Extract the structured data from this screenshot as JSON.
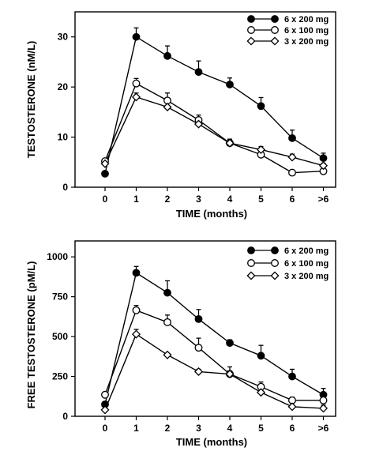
{
  "chart_data": [
    {
      "type": "line",
      "categories": [
        "0",
        "1",
        "2",
        "3",
        "4",
        "5",
        "6",
        ">6"
      ],
      "xlabel": "TIME (months)",
      "ylabel": "TESTOSTERONE (nM/L)",
      "ylim": [
        0,
        35
      ],
      "yticks": [
        0,
        10,
        20,
        30
      ],
      "legend_position": "top-right",
      "series": [
        {
          "name": "6 x 200 mg",
          "marker": "filled-circle",
          "values": [
            2.7,
            30,
            26.2,
            23,
            20.5,
            16.2,
            9.8,
            5.8
          ],
          "errors": [
            0,
            1.8,
            2.0,
            2.2,
            1.3,
            1.7,
            1.6,
            1.0
          ]
        },
        {
          "name": "6 x 100 mg",
          "marker": "open-circle",
          "values": [
            5.2,
            20.7,
            17.3,
            13.4,
            8.8,
            6.5,
            2.9,
            3.2
          ],
          "errors": [
            0,
            1.0,
            1.5,
            1.0,
            0.8,
            0.8,
            0.5,
            0.5
          ]
        },
        {
          "name": "3 x 200 mg",
          "marker": "open-diamond",
          "values": [
            4.7,
            18,
            16,
            12.6,
            8.8,
            7.5,
            6,
            4.3
          ],
          "errors": [
            0,
            0.8,
            1.6,
            1.0,
            0.7,
            0.6,
            0.6,
            0.5
          ]
        }
      ]
    },
    {
      "type": "line",
      "categories": [
        "0",
        "1",
        "2",
        "3",
        "4",
        "5",
        "6",
        ">6"
      ],
      "xlabel": "TIME (months)",
      "ylabel": "FREE TESTOSTERONE (pM/L)",
      "ylim": [
        0,
        1100
      ],
      "yticks": [
        0,
        250,
        500,
        750,
        1000
      ],
      "legend_position": "top-right",
      "series": [
        {
          "name": "6 x 200 mg",
          "marker": "filled-circle",
          "values": [
            75,
            900,
            775,
            610,
            460,
            380,
            250,
            135
          ],
          "errors": [
            0,
            40,
            75,
            60,
            20,
            65,
            45,
            40
          ]
        },
        {
          "name": "6 x 100 mg",
          "marker": "open-circle",
          "values": [
            135,
            665,
            590,
            430,
            265,
            185,
            100,
            100
          ],
          "errors": [
            0,
            30,
            45,
            60,
            20,
            30,
            20,
            20
          ]
        },
        {
          "name": "3 x 200 mg",
          "marker": "open-diamond",
          "values": [
            40,
            515,
            385,
            280,
            265,
            150,
            60,
            50
          ],
          "errors": [
            0,
            30,
            0,
            15,
            45,
            20,
            30,
            20
          ]
        }
      ]
    }
  ]
}
